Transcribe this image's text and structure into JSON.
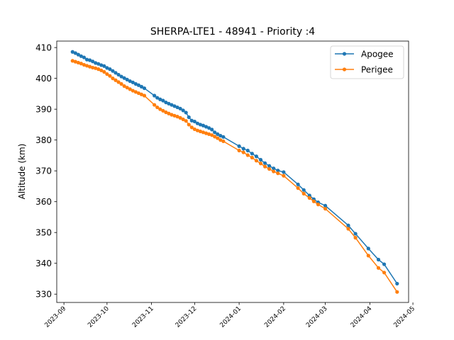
{
  "chart_data": {
    "type": "line",
    "title": "SHERPA-LTE1 - 48941 - Priority :4",
    "xlabel": "",
    "ylabel": "Altitude (km)",
    "x_axis_type": "date",
    "xlim": [
      "2023-08-27",
      "2024-04-28"
    ],
    "ylim": [
      327.3,
      412.1
    ],
    "xticks": [
      "2023-09",
      "2023-10",
      "2023-11",
      "2023-12",
      "2024-01",
      "2024-02",
      "2024-03",
      "2024-04",
      "2024-05"
    ],
    "yticks": [
      330,
      340,
      350,
      360,
      370,
      380,
      390,
      400,
      410
    ],
    "grid": false,
    "legend_position": "top-right",
    "series": [
      {
        "name": "Apogee",
        "color": "#1f77b4",
        "marker": "circle",
        "x": [
          "2023-09-07",
          "2023-09-09",
          "2023-09-11",
          "2023-09-13",
          "2023-09-15",
          "2023-09-17",
          "2023-09-19",
          "2023-09-21",
          "2023-09-23",
          "2023-09-25",
          "2023-09-27",
          "2023-09-29",
          "2023-10-01",
          "2023-10-03",
          "2023-10-05",
          "2023-10-07",
          "2023-10-09",
          "2023-10-11",
          "2023-10-13",
          "2023-10-15",
          "2023-10-17",
          "2023-10-19",
          "2023-10-21",
          "2023-10-23",
          "2023-10-25",
          "2023-10-27",
          "2023-11-03",
          "2023-11-05",
          "2023-11-07",
          "2023-11-09",
          "2023-11-11",
          "2023-11-13",
          "2023-11-15",
          "2023-11-17",
          "2023-11-19",
          "2023-11-21",
          "2023-11-23",
          "2023-11-25",
          "2023-11-27",
          "2023-11-29",
          "2023-12-01",
          "2023-12-03",
          "2023-12-05",
          "2023-12-07",
          "2023-12-09",
          "2023-12-11",
          "2023-12-13",
          "2023-12-15",
          "2023-12-17",
          "2023-12-19",
          "2023-12-21",
          "2024-01-01",
          "2024-01-04",
          "2024-01-07",
          "2024-01-10",
          "2024-01-13",
          "2024-01-16",
          "2024-01-19",
          "2024-01-22",
          "2024-01-25",
          "2024-01-28",
          "2024-02-01",
          "2024-02-11",
          "2024-02-15",
          "2024-02-19",
          "2024-02-22",
          "2024-02-25",
          "2024-03-01",
          "2024-03-17",
          "2024-03-22",
          "2024-03-31",
          "2024-04-07",
          "2024-04-11",
          "2024-04-20"
        ],
        "values": [
          408.6,
          408.2,
          407.7,
          407.2,
          406.8,
          406.1,
          405.9,
          405.5,
          405.0,
          404.7,
          404.3,
          404.0,
          403.4,
          403.0,
          402.4,
          401.8,
          401.2,
          400.6,
          400.1,
          399.6,
          399.1,
          398.7,
          398.2,
          397.8,
          397.3,
          396.8,
          394.4,
          393.7,
          393.2,
          392.8,
          392.2,
          391.8,
          391.4,
          391.0,
          390.6,
          390.2,
          389.6,
          388.9,
          387.4,
          386.3,
          386.0,
          385.4,
          385.0,
          384.7,
          384.3,
          383.9,
          383.4,
          382.5,
          381.9,
          381.4,
          381.0,
          378.0,
          377.2,
          376.6,
          375.6,
          374.7,
          373.6,
          372.5,
          371.6,
          370.8,
          370.1,
          369.6,
          365.6,
          363.8,
          362.0,
          360.8,
          359.8,
          358.7,
          352.3,
          349.6,
          344.8,
          341.2,
          339.7,
          333.4
        ]
      },
      {
        "name": "Perigee",
        "color": "#ff7f0e",
        "marker": "circle",
        "x": [
          "2023-09-07",
          "2023-09-09",
          "2023-09-11",
          "2023-09-13",
          "2023-09-15",
          "2023-09-17",
          "2023-09-19",
          "2023-09-21",
          "2023-09-23",
          "2023-09-25",
          "2023-09-27",
          "2023-09-29",
          "2023-10-01",
          "2023-10-03",
          "2023-10-05",
          "2023-10-07",
          "2023-10-09",
          "2023-10-11",
          "2023-10-13",
          "2023-10-15",
          "2023-10-17",
          "2023-10-19",
          "2023-10-21",
          "2023-10-23",
          "2023-10-25",
          "2023-10-27",
          "2023-11-03",
          "2023-11-05",
          "2023-11-07",
          "2023-11-09",
          "2023-11-11",
          "2023-11-13",
          "2023-11-15",
          "2023-11-17",
          "2023-11-19",
          "2023-11-21",
          "2023-11-23",
          "2023-11-25",
          "2023-11-27",
          "2023-11-29",
          "2023-12-01",
          "2023-12-03",
          "2023-12-05",
          "2023-12-07",
          "2023-12-09",
          "2023-12-11",
          "2023-12-13",
          "2023-12-15",
          "2023-12-17",
          "2023-12-19",
          "2023-12-21",
          "2024-01-01",
          "2024-01-04",
          "2024-01-07",
          "2024-01-10",
          "2024-01-13",
          "2024-01-16",
          "2024-01-19",
          "2024-01-22",
          "2024-01-25",
          "2024-01-28",
          "2024-02-01",
          "2024-02-11",
          "2024-02-15",
          "2024-02-19",
          "2024-02-22",
          "2024-02-25",
          "2024-03-01",
          "2024-03-17",
          "2024-03-22",
          "2024-03-31",
          "2024-04-07",
          "2024-04-11",
          "2024-04-20"
        ],
        "values": [
          405.7,
          405.4,
          405.1,
          404.8,
          404.4,
          404.1,
          403.8,
          403.5,
          403.3,
          403.0,
          402.6,
          402.1,
          401.4,
          400.8,
          400.0,
          399.4,
          398.8,
          398.2,
          397.5,
          397.0,
          396.5,
          396.0,
          395.6,
          395.2,
          394.8,
          394.4,
          391.4,
          390.6,
          390.0,
          389.5,
          389.0,
          388.6,
          388.2,
          387.9,
          387.6,
          387.2,
          386.7,
          386.2,
          385.0,
          384.1,
          383.5,
          383.1,
          382.8,
          382.5,
          382.2,
          381.9,
          381.6,
          381.1,
          380.6,
          380.0,
          379.6,
          376.6,
          376.0,
          375.1,
          374.3,
          373.3,
          372.4,
          371.4,
          370.6,
          369.8,
          369.2,
          368.4,
          364.4,
          362.6,
          361.2,
          360.1,
          359.1,
          357.7,
          351.2,
          348.3,
          342.5,
          338.5,
          337.0,
          330.7
        ]
      }
    ]
  }
}
